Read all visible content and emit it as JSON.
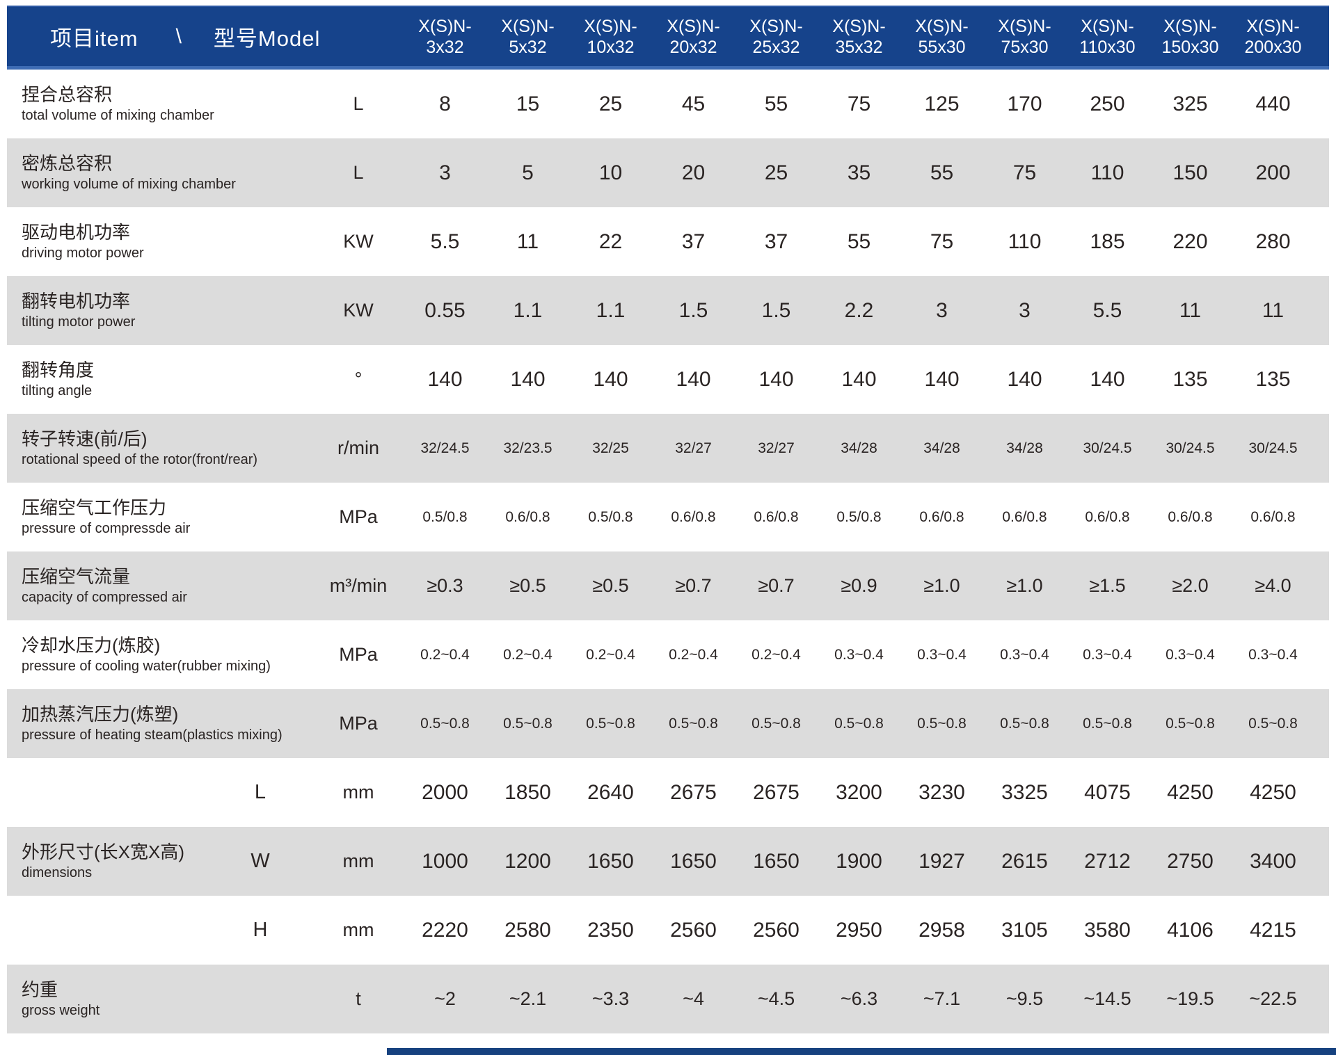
{
  "header": {
    "item_label": "项目item",
    "separator": "\\",
    "model_label": "型号Model",
    "models": [
      {
        "prefix": "X(S)N-",
        "size": "3x32"
      },
      {
        "prefix": "X(S)N-",
        "size": "5x32"
      },
      {
        "prefix": "X(S)N-",
        "size": "10x32"
      },
      {
        "prefix": "X(S)N-",
        "size": "20x32"
      },
      {
        "prefix": "X(S)N-",
        "size": "25x32"
      },
      {
        "prefix": "X(S)N-",
        "size": "35x32"
      },
      {
        "prefix": "X(S)N-",
        "size": "55x30"
      },
      {
        "prefix": "X(S)N-",
        "size": "75x30"
      },
      {
        "prefix": "X(S)N-",
        "size": "110x30"
      },
      {
        "prefix": "X(S)N-",
        "size": "150x30"
      },
      {
        "prefix": "X(S)N-",
        "size": "200x30"
      }
    ]
  },
  "colors": {
    "header_bg": "#16438b",
    "header_accent": "#3e6cb4",
    "row_alt_bg": "#dcdcdc",
    "text": "#2a2423",
    "footer_bar": "#16417f"
  },
  "rows": [
    {
      "id": "total-mixing-volume",
      "zh": "捏合总容积",
      "en": "total volume of mixing chamber",
      "sub": "",
      "unit": "L",
      "value_size": "lg",
      "values": [
        "8",
        "15",
        "25",
        "45",
        "55",
        "75",
        "125",
        "170",
        "250",
        "325",
        "440"
      ]
    },
    {
      "id": "working-volume",
      "zh": "密炼总容积",
      "en": "working volume of mixing chamber",
      "sub": "",
      "unit": "L",
      "value_size": "lg",
      "values": [
        "3",
        "5",
        "10",
        "20",
        "25",
        "35",
        "55",
        "75",
        "110",
        "150",
        "200"
      ]
    },
    {
      "id": "driving-motor-power",
      "zh": "驱动电机功率",
      "en": "driving motor power",
      "sub": "",
      "unit": "KW",
      "value_size": "lg",
      "values": [
        "5.5",
        "11",
        "22",
        "37",
        "37",
        "55",
        "75",
        "110",
        "185",
        "220",
        "280"
      ]
    },
    {
      "id": "tilting-motor-power",
      "zh": "翻转电机功率",
      "en": "tilting motor power",
      "sub": "",
      "unit": "KW",
      "value_size": "lg",
      "values": [
        "0.55",
        "1.1",
        "1.1",
        "1.5",
        "1.5",
        "2.2",
        "3",
        "3",
        "5.5",
        "11",
        "11"
      ]
    },
    {
      "id": "tilting-angle",
      "zh": "翻转角度",
      "en": "tilting angle",
      "sub": "",
      "unit": "°",
      "value_size": "lg",
      "values": [
        "140",
        "140",
        "140",
        "140",
        "140",
        "140",
        "140",
        "140",
        "140",
        "135",
        "135"
      ]
    },
    {
      "id": "rotor-speed",
      "zh": "转子转速(前/后)",
      "en": "rotational speed of the rotor(front/rear)",
      "sub": "",
      "unit": "r/min",
      "value_size": "sm",
      "values": [
        "32/24.5",
        "32/23.5",
        "32/25",
        "32/27",
        "32/27",
        "34/28",
        "34/28",
        "34/28",
        "30/24.5",
        "30/24.5",
        "30/24.5"
      ]
    },
    {
      "id": "compressed-air-pressure",
      "zh": "压缩空气工作压力",
      "en": "pressure of compressde air",
      "sub": "",
      "unit": "MPa",
      "value_size": "sm",
      "values": [
        "0.5/0.8",
        "0.6/0.8",
        "0.5/0.8",
        "0.6/0.8",
        "0.6/0.8",
        "0.5/0.8",
        "0.6/0.8",
        "0.6/0.8",
        "0.6/0.8",
        "0.6/0.8",
        "0.6/0.8"
      ]
    },
    {
      "id": "compressed-air-capacity",
      "zh": "压缩空气流量",
      "en": "capacity of compressed air",
      "sub": "",
      "unit": "m³/min",
      "value_size": "md",
      "values": [
        "≥0.3",
        "≥0.5",
        "≥0.5",
        "≥0.7",
        "≥0.7",
        "≥0.9",
        "≥1.0",
        "≥1.0",
        "≥1.5",
        "≥2.0",
        "≥4.0"
      ]
    },
    {
      "id": "cooling-water-pressure",
      "zh": "冷却水压力(炼胶)",
      "en": "pressure of cooling water(rubber mixing)",
      "sub": "",
      "unit": "MPa",
      "value_size": "sm",
      "values": [
        "0.2~0.4",
        "0.2~0.4",
        "0.2~0.4",
        "0.2~0.4",
        "0.2~0.4",
        "0.3~0.4",
        "0.3~0.4",
        "0.3~0.4",
        "0.3~0.4",
        "0.3~0.4",
        "0.3~0.4"
      ]
    },
    {
      "id": "heating-steam-pressure",
      "zh": "加热蒸汽压力(炼塑)",
      "en": "pressure of heating steam(plastics mixing)",
      "sub": "",
      "unit": "MPa",
      "value_size": "sm",
      "values": [
        "0.5~0.8",
        "0.5~0.8",
        "0.5~0.8",
        "0.5~0.8",
        "0.5~0.8",
        "0.5~0.8",
        "0.5~0.8",
        "0.5~0.8",
        "0.5~0.8",
        "0.5~0.8",
        "0.5~0.8"
      ]
    },
    {
      "id": "dimension-length",
      "zh": "",
      "en": "",
      "sub": "L",
      "unit": "mm",
      "value_size": "lg",
      "values": [
        "2000",
        "1850",
        "2640",
        "2675",
        "2675",
        "3200",
        "3230",
        "3325",
        "4075",
        "4250",
        "4250"
      ]
    },
    {
      "id": "dimension-width",
      "zh": "外形尺寸(长X宽X高)",
      "en": "dimensions",
      "sub": "W",
      "unit": "mm",
      "value_size": "lg",
      "values": [
        "1000",
        "1200",
        "1650",
        "1650",
        "1650",
        "1900",
        "1927",
        "2615",
        "2712",
        "2750",
        "3400"
      ]
    },
    {
      "id": "dimension-height",
      "zh": "",
      "en": "",
      "sub": "H",
      "unit": "mm",
      "value_size": "lg",
      "values": [
        "2220",
        "2580",
        "2350",
        "2560",
        "2560",
        "2950",
        "2958",
        "3105",
        "3580",
        "4106",
        "4215"
      ]
    },
    {
      "id": "gross-weight",
      "zh": "约重",
      "en": "gross weight",
      "sub": "",
      "unit": "t",
      "value_size": "md",
      "values": [
        "~2",
        "~2.1",
        "~3.3",
        "~4",
        "~4.5",
        "~6.3",
        "~7.1",
        "~9.5",
        "~14.5",
        "~19.5",
        "~22.5"
      ]
    }
  ]
}
